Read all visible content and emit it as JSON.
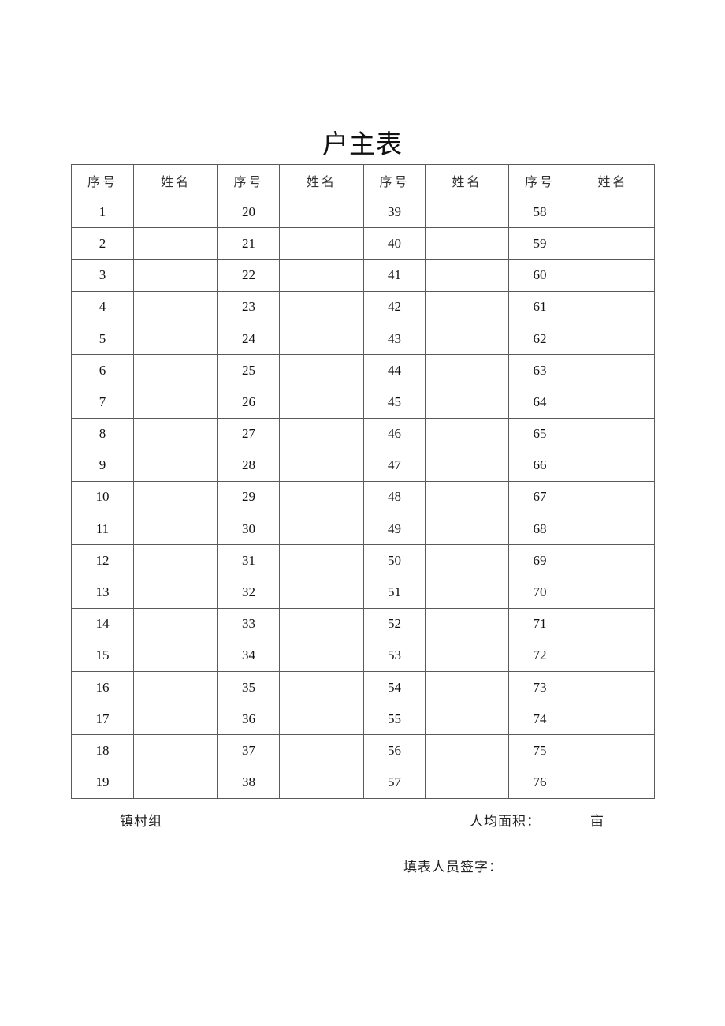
{
  "title": "户主表",
  "table": {
    "headers": [
      "序号",
      "姓名",
      "序号",
      "姓名",
      "序号",
      "姓名",
      "序号",
      "姓名"
    ],
    "rows": [
      [
        "1",
        "",
        "20",
        "",
        "39",
        "",
        "58",
        ""
      ],
      [
        "2",
        "",
        "21",
        "",
        "40",
        "",
        "59",
        ""
      ],
      [
        "3",
        "",
        "22",
        "",
        "41",
        "",
        "60",
        ""
      ],
      [
        "4",
        "",
        "23",
        "",
        "42",
        "",
        "61",
        ""
      ],
      [
        "5",
        "",
        "24",
        "",
        "43",
        "",
        "62",
        ""
      ],
      [
        "6",
        "",
        "25",
        "",
        "44",
        "",
        "63",
        ""
      ],
      [
        "7",
        "",
        "26",
        "",
        "45",
        "",
        "64",
        ""
      ],
      [
        "8",
        "",
        "27",
        "",
        "46",
        "",
        "65",
        ""
      ],
      [
        "9",
        "",
        "28",
        "",
        "47",
        "",
        "66",
        ""
      ],
      [
        "10",
        "",
        "29",
        "",
        "48",
        "",
        "67",
        ""
      ],
      [
        "11",
        "",
        "30",
        "",
        "49",
        "",
        "68",
        ""
      ],
      [
        "12",
        "",
        "31",
        "",
        "50",
        "",
        "69",
        ""
      ],
      [
        "13",
        "",
        "32",
        "",
        "51",
        "",
        "70",
        ""
      ],
      [
        "14",
        "",
        "33",
        "",
        "52",
        "",
        "71",
        ""
      ],
      [
        "15",
        "",
        "34",
        "",
        "53",
        "",
        "72",
        ""
      ],
      [
        "16",
        "",
        "35",
        "",
        "54",
        "",
        "73",
        ""
      ],
      [
        "17",
        "",
        "36",
        "",
        "55",
        "",
        "74",
        ""
      ],
      [
        "18",
        "",
        "37",
        "",
        "56",
        "",
        "75",
        ""
      ],
      [
        "19",
        "",
        "38",
        "",
        "57",
        "",
        "76",
        ""
      ]
    ]
  },
  "footer": {
    "village_label": "镇村组",
    "area_label": "人均面积：",
    "area_unit": "亩",
    "signature_label": "填表人员签字："
  }
}
